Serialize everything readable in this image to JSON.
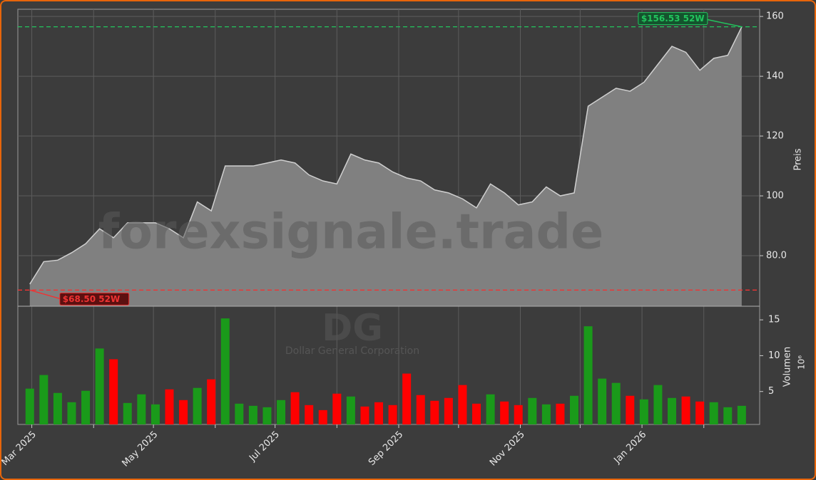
{
  "chart_data": [
    {
      "type": "area",
      "watermark": "forexsignale.trade",
      "ylabel": "Preis",
      "color": "#808080",
      "line_color": "#d0d0d0",
      "grid": true,
      "xlim": [
        "2025-02-22",
        "2026-03-01"
      ],
      "ylim": [
        63.1,
        162.4
      ],
      "yticks": [
        {
          "value": 80,
          "label": "80.0"
        },
        100,
        120,
        140,
        160
      ],
      "x": [
        "2025-02-28",
        "2025-03-07",
        "2025-03-14",
        "2025-03-21",
        "2025-03-28",
        "2025-04-04",
        "2025-04-11",
        "2025-04-18",
        "2025-04-25",
        "2025-05-02",
        "2025-05-09",
        "2025-05-16",
        "2025-05-23",
        "2025-05-30",
        "2025-06-06",
        "2025-06-13",
        "2025-06-20",
        "2025-06-27",
        "2025-07-04",
        "2025-07-11",
        "2025-07-18",
        "2025-07-25",
        "2025-08-01",
        "2025-08-08",
        "2025-08-15",
        "2025-08-22",
        "2025-08-29",
        "2025-09-05",
        "2025-09-12",
        "2025-09-19",
        "2025-09-26",
        "2025-10-03",
        "2025-10-10",
        "2025-10-17",
        "2025-10-24",
        "2025-10-31",
        "2025-11-07",
        "2025-11-14",
        "2025-11-21",
        "2025-11-28",
        "2025-12-05",
        "2025-12-12",
        "2025-12-19",
        "2025-12-26",
        "2026-01-02",
        "2026-01-09",
        "2026-01-16",
        "2026-01-23",
        "2026-01-30",
        "2026-02-06",
        "2026-02-13",
        "2026-02-20"
      ],
      "values": [
        70.5,
        78,
        78.5,
        81,
        84,
        89,
        86,
        91,
        91,
        91,
        89,
        86,
        98,
        95,
        110,
        110,
        110,
        111,
        112,
        111,
        107,
        105,
        104,
        114,
        112,
        111,
        108,
        106,
        105,
        102,
        101,
        99,
        96,
        104,
        101,
        97,
        98,
        103,
        100,
        101,
        130,
        133,
        136,
        135,
        138,
        144,
        150,
        148,
        142,
        146,
        147,
        156.5
      ],
      "high_52w": {
        "value": 156.53,
        "label": "$156.53 52W",
        "color": "#22c55e",
        "date": "2026-02-20"
      },
      "low_52w": {
        "value": 68.5,
        "label": "$68.50 52W",
        "color": "#ef3333",
        "date": "2025-02-28"
      }
    },
    {
      "type": "bar",
      "symbol": "DG",
      "company": "Dollar General Corporation",
      "ylabel": "Volumen",
      "scale_label": "10⁶",
      "up_color": "#1a9a1a",
      "down_color": "#ff0000",
      "xlim": [
        "2025-02-22",
        "2026-03-01"
      ],
      "ylim": [
        0.4,
        16.9
      ],
      "yticks": [
        5,
        10,
        15
      ],
      "xticks": [
        {
          "value": "2025-03-01",
          "label": "Mar 2025"
        },
        {
          "value": "2025-04-01",
          "label": null
        },
        {
          "value": "2025-05-01",
          "label": "May 2025"
        },
        {
          "value": "2025-06-01",
          "label": null
        },
        {
          "value": "2025-07-01",
          "label": "Jul 2025"
        },
        {
          "value": "2025-08-01",
          "label": null
        },
        {
          "value": "2025-09-01",
          "label": "Sep 2025"
        },
        {
          "value": "2025-10-01",
          "label": null
        },
        {
          "value": "2025-11-01",
          "label": "Nov 2025"
        },
        {
          "value": "2025-12-01",
          "label": null
        },
        {
          "value": "2026-01-01",
          "label": "Jan 2026"
        },
        {
          "value": "2026-02-01",
          "label": null
        }
      ],
      "x": [
        "2025-02-28",
        "2025-03-07",
        "2025-03-14",
        "2025-03-21",
        "2025-03-28",
        "2025-04-04",
        "2025-04-11",
        "2025-04-18",
        "2025-04-25",
        "2025-05-02",
        "2025-05-09",
        "2025-05-16",
        "2025-05-23",
        "2025-05-30",
        "2025-06-06",
        "2025-06-13",
        "2025-06-20",
        "2025-06-27",
        "2025-07-04",
        "2025-07-11",
        "2025-07-18",
        "2025-07-25",
        "2025-08-01",
        "2025-08-08",
        "2025-08-15",
        "2025-08-22",
        "2025-08-29",
        "2025-09-05",
        "2025-09-12",
        "2025-09-19",
        "2025-09-26",
        "2025-10-03",
        "2025-10-10",
        "2025-10-17",
        "2025-10-24",
        "2025-10-31",
        "2025-11-07",
        "2025-11-14",
        "2025-11-21",
        "2025-11-28",
        "2025-12-05",
        "2025-12-12",
        "2025-12-19",
        "2025-12-26",
        "2026-01-02",
        "2026-01-09",
        "2026-01-16",
        "2026-01-23",
        "2026-01-30",
        "2026-02-06",
        "2026-02-13",
        "2026-02-20"
      ],
      "values": [
        5.4,
        7.3,
        4.8,
        3.5,
        5.1,
        11,
        9.5,
        3.4,
        4.6,
        3.2,
        5.3,
        3.8,
        5.5,
        6.7,
        15.2,
        3.3,
        3,
        2.8,
        3.8,
        4.9,
        3.1,
        2.4,
        4.7,
        4.3,
        2.9,
        3.5,
        3.1,
        7.5,
        4.5,
        3.7,
        4.1,
        5.9,
        3.3,
        4.6,
        3.6,
        3.1,
        4.1,
        3.2,
        3.3,
        4.4,
        14.1,
        6.8,
        6.2,
        4.4,
        3.9,
        5.9,
        4.1,
        4.3,
        3.6,
        3.5,
        2.8,
        3
      ]
    }
  ]
}
